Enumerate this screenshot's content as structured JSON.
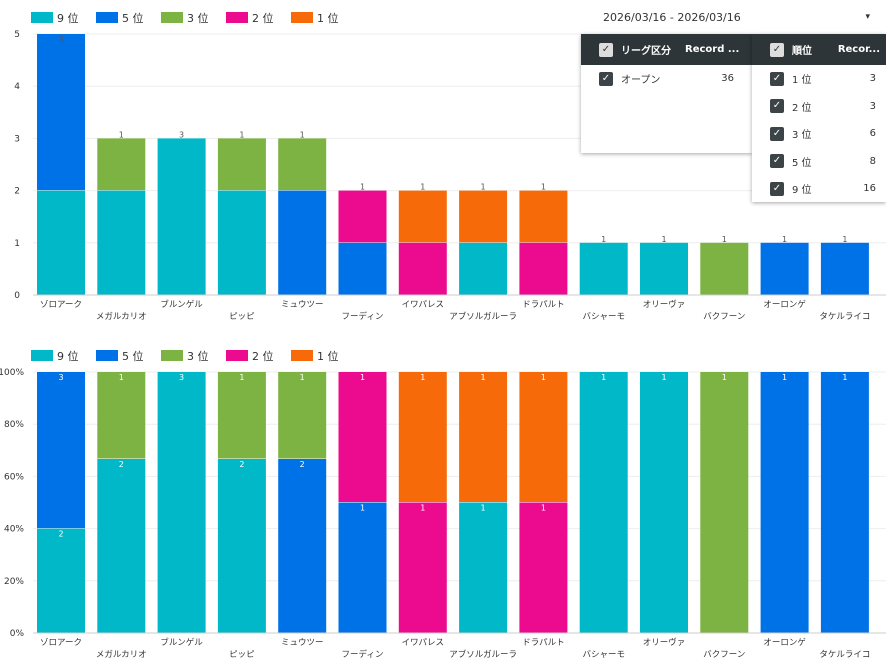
{
  "filter": {
    "date_range": "2026/03/16 - 2026/03/16",
    "dropdown_icon": "▾",
    "league": {
      "header": "リーグ区分",
      "metric": "Record ...",
      "rows": [
        {
          "label": "オープン",
          "value": "36"
        }
      ]
    },
    "rank": {
      "header": "順位",
      "metric": "Recor...",
      "rows": [
        {
          "label": "1 位",
          "value": "3"
        },
        {
          "label": "2 位",
          "value": "3"
        },
        {
          "label": "3 位",
          "value": "6"
        },
        {
          "label": "5 位",
          "value": "8"
        },
        {
          "label": "9 位",
          "value": "16"
        }
      ]
    }
  },
  "chart_data": [
    {
      "type": "bar",
      "stacked": true,
      "title": "",
      "ylim": [
        0,
        5
      ],
      "yticks": [
        "0",
        "1",
        "2",
        "3",
        "4",
        "5"
      ],
      "legend_position": "top-left",
      "categories": [
        "ゾロアーク",
        "メガルカリオ",
        "ブルンゲル",
        "ピッピ",
        "ミュウツー",
        "フーディン",
        "イワパレス",
        "アブソルガルーラ",
        "ドラパルト",
        "バシャーモ",
        "オリーヴァ",
        "バクフーン",
        "オーロンゲ",
        "タケルライコ"
      ],
      "series": [
        {
          "name": "9 位",
          "color": "#00b8c8",
          "values": [
            2,
            2,
            3,
            2,
            0,
            0,
            0,
            1,
            0,
            1,
            1,
            0,
            0,
            0
          ]
        },
        {
          "name": "5 位",
          "color": "#0072e8",
          "values": [
            3,
            0,
            0,
            0,
            2,
            1,
            0,
            0,
            0,
            0,
            0,
            0,
            1,
            1
          ]
        },
        {
          "name": "3 位",
          "color": "#7cb342",
          "values": [
            0,
            1,
            0,
            1,
            1,
            0,
            0,
            0,
            0,
            0,
            0,
            1,
            0,
            0
          ]
        },
        {
          "name": "2 位",
          "color": "#ec0a8f",
          "values": [
            0,
            0,
            0,
            0,
            0,
            1,
            1,
            0,
            1,
            0,
            0,
            0,
            0,
            0
          ]
        },
        {
          "name": "1 位",
          "color": "#f76a0a",
          "values": [
            0,
            0,
            0,
            0,
            0,
            0,
            1,
            1,
            1,
            0,
            0,
            0,
            0,
            0
          ]
        }
      ]
    },
    {
      "type": "bar",
      "stacked": true,
      "percent": true,
      "ylim": [
        0,
        100
      ],
      "yticks": [
        "0%",
        "20%",
        "40%",
        "60%",
        "80%",
        "100%"
      ],
      "legend_position": "top-left"
    }
  ]
}
